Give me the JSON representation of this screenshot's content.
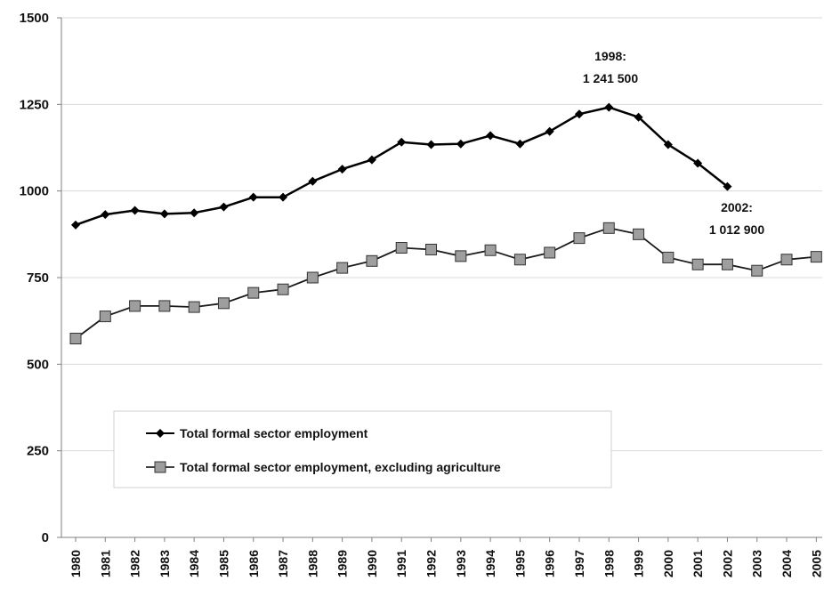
{
  "chart_data": {
    "type": "line",
    "title": "",
    "xlabel": "",
    "ylabel": "",
    "x": [
      "1980",
      "1981",
      "1982",
      "1983",
      "1984",
      "1985",
      "1986",
      "1987",
      "1988",
      "1989",
      "1990",
      "1991",
      "1992",
      "1993",
      "1994",
      "1995",
      "1996",
      "1997",
      "1998",
      "1999",
      "2000",
      "2001",
      "2002",
      "2003",
      "2004",
      "2005"
    ],
    "ylim": [
      0,
      1500
    ],
    "yticks": [
      "0",
      "250",
      "500",
      "750",
      "1000",
      "1250",
      "1500"
    ],
    "grid": true,
    "legend_position": "bottom-left",
    "series": [
      {
        "name": "Total formal sector employment",
        "color": "#000000",
        "marker": "diamond",
        "values": [
          902,
          932,
          944,
          934,
          937,
          954,
          982,
          982,
          1028,
          1063,
          1090,
          1141,
          1134,
          1136,
          1160,
          1136,
          1172,
          1222,
          1241.5,
          1213,
          1134,
          1080,
          1012.9,
          null,
          null,
          null
        ]
      },
      {
        "name": "Total formal sector employment, excluding agriculture",
        "color": "#808080",
        "marker": "square",
        "values": [
          574,
          638,
          668,
          668,
          665,
          676,
          706,
          716,
          750,
          778,
          798,
          836,
          831,
          812,
          829,
          802,
          822,
          864,
          893,
          875,
          808,
          788,
          788,
          770,
          802,
          810
        ]
      }
    ],
    "annotations": [
      {
        "year_line": "1998:",
        "value_line": "1 241 500",
        "x": "1998"
      },
      {
        "year_line": "2002:",
        "value_line": "1 012 900",
        "x": "2002"
      }
    ]
  }
}
